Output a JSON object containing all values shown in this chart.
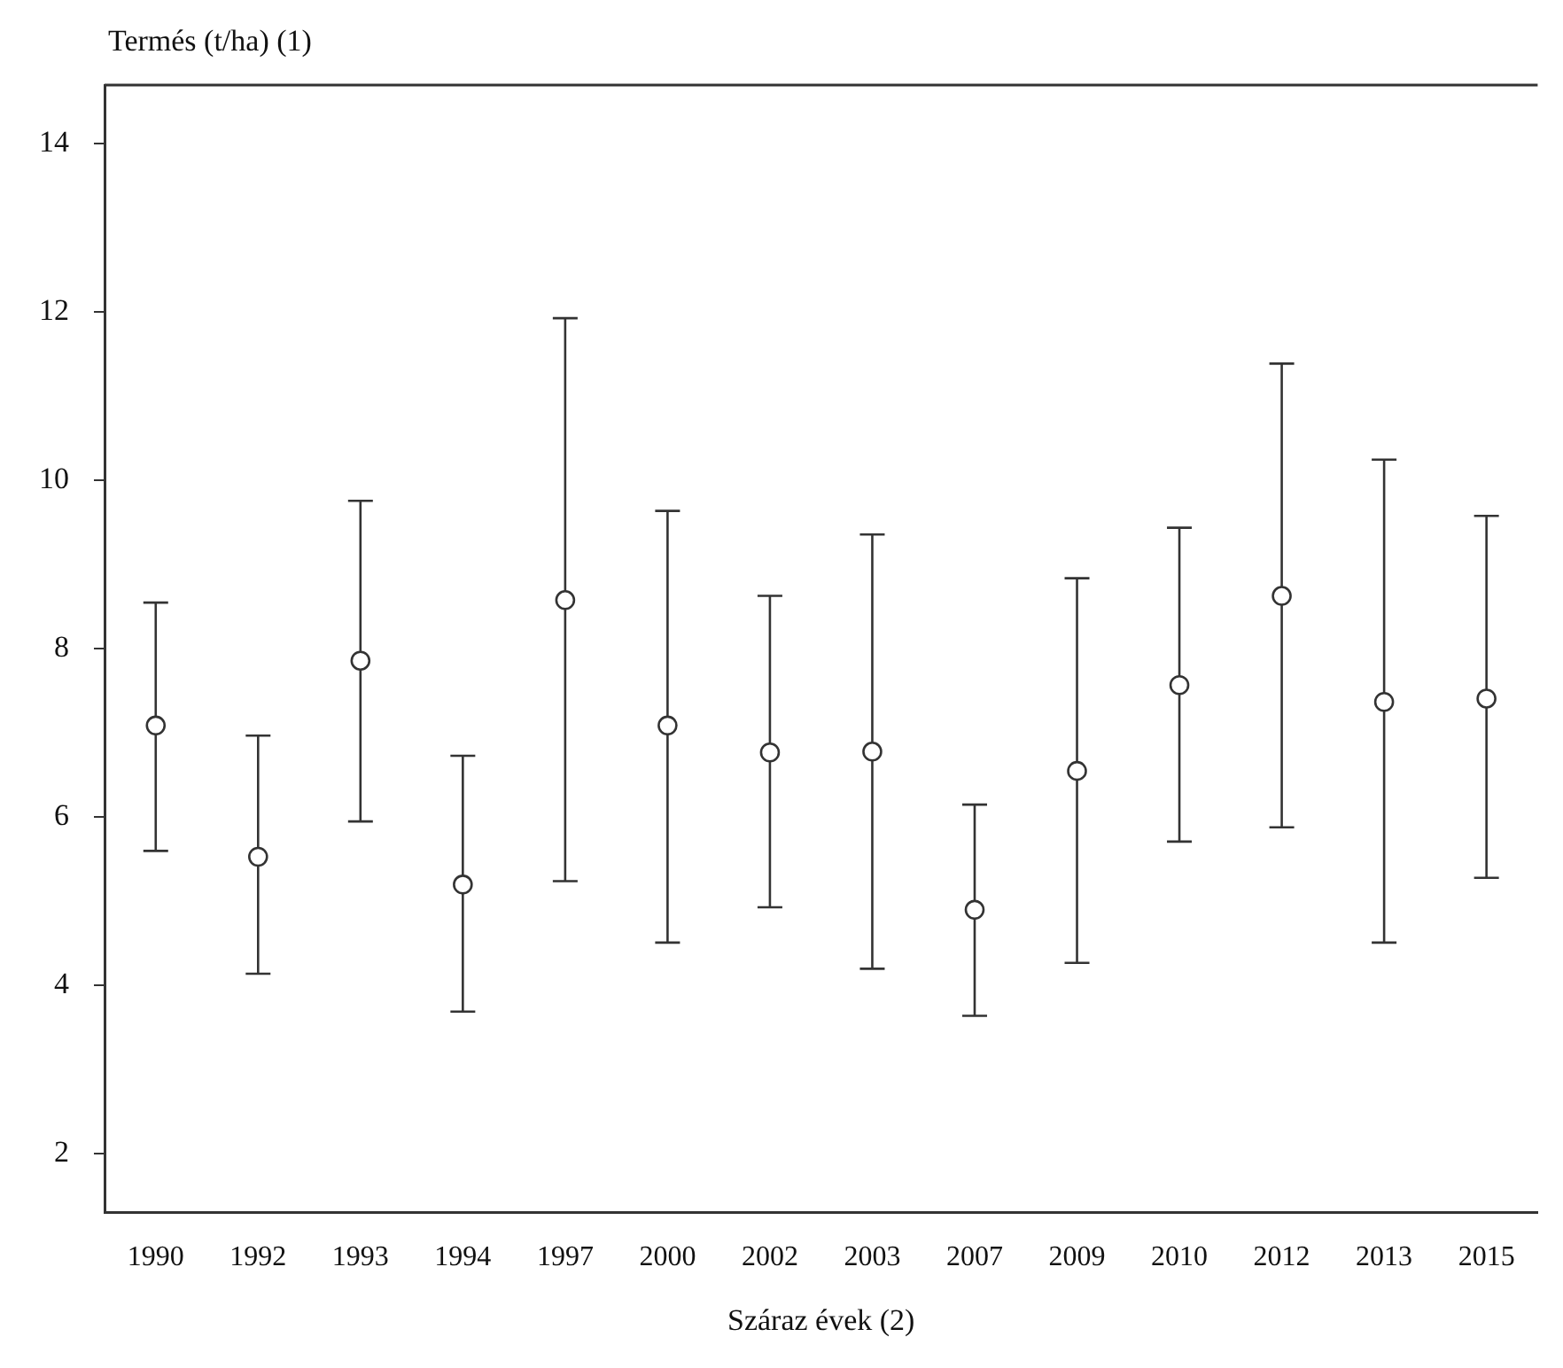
{
  "chart_data": {
    "type": "scatter",
    "ylabel": "Termés (t/ha) (1)",
    "xlabel": "Száraz évek (2)",
    "categories": [
      "1990",
      "1992",
      "1993",
      "1994",
      "1997",
      "2000",
      "2002",
      "2003",
      "2007",
      "2009",
      "2010",
      "2012",
      "2013",
      "2015"
    ],
    "series": [
      {
        "color": "#333333",
        "values": [
          7.09,
          5.53,
          7.86,
          5.2,
          8.58,
          7.09,
          6.77,
          6.78,
          4.9,
          6.55,
          7.57,
          8.63,
          7.37,
          7.41
        ],
        "errors": [
          [
            5.6,
            8.55
          ],
          [
            4.14,
            6.97
          ],
          [
            5.95,
            9.76
          ],
          [
            3.69,
            6.73
          ],
          [
            5.24,
            11.93
          ],
          [
            4.51,
            9.64
          ],
          [
            4.93,
            8.63
          ],
          [
            4.2,
            9.36
          ],
          [
            3.64,
            6.15
          ],
          [
            4.27,
            8.84
          ],
          [
            5.71,
            9.44
          ],
          [
            5.88,
            11.39
          ],
          [
            4.51,
            10.25
          ],
          [
            5.28,
            9.58
          ]
        ]
      }
    ],
    "ylim": [
      1.3,
      14.7
    ],
    "yticks": [
      2,
      4,
      6,
      8,
      10,
      12,
      14
    ],
    "grid": false,
    "legend": false,
    "marker": "circle"
  }
}
